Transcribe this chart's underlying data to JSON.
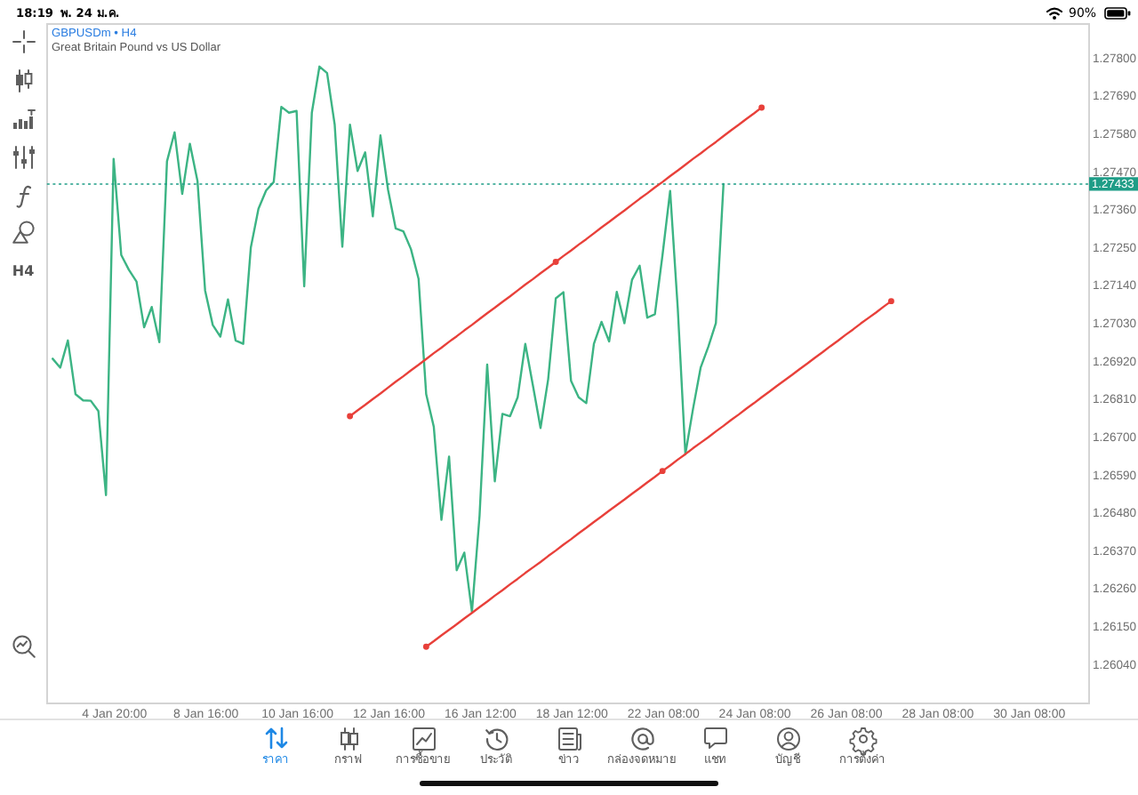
{
  "chart_data": {
    "type": "line",
    "title": "GBPUSDm • H4",
    "subtitle": "Great Britain Pound vs US Dollar",
    "categories": [
      null,
      null,
      null,
      null,
      null,
      null,
      null,
      null,
      "4 Jan 20:00",
      null,
      null,
      null,
      null,
      null,
      null,
      null,
      null,
      null,
      null,
      null,
      "8 Jan 16:00",
      null,
      null,
      null,
      null,
      null,
      null,
      null,
      null,
      null,
      null,
      null,
      "10 Jan 16:00",
      null,
      null,
      null,
      null,
      null,
      null,
      null,
      null,
      null,
      null,
      null,
      "12 Jan 16:00",
      null,
      null,
      null,
      null,
      null,
      null,
      null,
      null,
      null,
      null,
      null,
      "16 Jan 12:00",
      null,
      null,
      null,
      null,
      null,
      null,
      null,
      null,
      null,
      null,
      null,
      "18 Jan 12:00",
      null,
      null,
      null,
      null,
      null,
      null,
      null,
      null,
      null,
      null,
      null,
      "22 Jan 08:00",
      null,
      null,
      null,
      null,
      null,
      null,
      null,
      null,
      null,
      null,
      null,
      "24 Jan 08:00",
      null,
      null,
      null,
      null,
      null,
      null,
      null,
      null,
      null,
      null,
      null,
      "26 Jan 08:00",
      null,
      null,
      null,
      null,
      null,
      null,
      null,
      null,
      null,
      null,
      null,
      "28 Jan 08:00",
      null,
      null,
      null,
      null,
      null,
      null,
      null,
      null,
      null,
      null,
      null,
      "30 Jan 08:00",
      null,
      null,
      null,
      null,
      null,
      null,
      null
    ],
    "series": [
      {
        "color": "#3cb484",
        "values": [
          1.26926,
          1.269,
          1.26979,
          1.26823,
          1.26805,
          1.26804,
          1.26774,
          1.2653,
          1.27506,
          1.27227,
          1.27184,
          1.2715,
          1.27017,
          1.27076,
          1.26974,
          1.27499,
          1.27583,
          1.27404,
          1.2755,
          1.27442,
          1.27124,
          1.27024,
          1.2699,
          1.27098,
          1.26979,
          1.26969,
          1.27249,
          1.27361,
          1.27414,
          1.27439,
          1.27657,
          1.2764,
          1.27645,
          1.27136,
          1.2764,
          1.27774,
          1.27755,
          1.27605,
          1.27251,
          1.27605,
          1.27471,
          1.27525,
          1.27339,
          1.27574,
          1.27416,
          1.27304,
          1.27296,
          1.27244,
          1.27158,
          1.26823,
          1.26728,
          1.26458,
          1.26642,
          1.26312,
          1.26363,
          1.26191,
          1.2647,
          1.26909,
          1.2657,
          1.26766,
          1.26759,
          1.26814,
          1.26969,
          1.26848,
          1.26725,
          1.26866,
          1.27101,
          1.27119,
          1.26862,
          1.26814,
          1.26797,
          1.26969,
          1.27033,
          1.26976,
          1.2712,
          1.27029,
          1.27155,
          1.27196,
          1.27045,
          1.27055,
          1.27227,
          1.27413,
          1.27072,
          1.26649,
          1.2678,
          1.269,
          1.2696,
          1.27029,
          1.27433,
          null,
          null,
          null,
          null,
          null,
          null,
          null,
          null,
          null,
          null,
          null,
          null,
          null,
          null,
          null,
          null,
          null,
          null,
          null,
          null,
          null,
          null,
          null,
          null,
          null,
          null,
          null,
          null,
          null,
          null,
          null,
          null,
          null,
          null,
          null,
          null,
          null,
          null,
          null,
          null,
          null,
          null,
          null,
          null,
          null,
          null,
          null
        ]
      },
      {
        "type": "line",
        "color": "#e8403a",
        "values": [
          null,
          null,
          null,
          null,
          null,
          null,
          null,
          null,
          null,
          null,
          null,
          null,
          null,
          null,
          null,
          null,
          null,
          null,
          null,
          null,
          null,
          null,
          null,
          null,
          null,
          null,
          null,
          null,
          null,
          null,
          null,
          null,
          null,
          null,
          null,
          null,
          null,
          null,
          null,
          1.26759,
          1.26776,
          1.26792,
          1.26809,
          1.26825,
          1.26842,
          1.26859,
          1.26875,
          1.26892,
          1.26908,
          1.26925,
          1.26942,
          1.26958,
          1.26975,
          1.26991,
          1.27008,
          1.27024,
          1.27041,
          1.27058,
          1.27074,
          1.27091,
          1.27107,
          1.27124,
          1.27141,
          1.27157,
          1.27174,
          1.2719,
          1.27207,
          1.27224,
          1.2724,
          1.27257,
          1.27273,
          1.2729,
          1.27307,
          1.27323,
          1.2734,
          1.27356,
          1.27373,
          1.2739,
          1.27406,
          1.27423,
          1.27439,
          1.27456,
          1.27472,
          1.27489,
          1.27506,
          1.27522,
          1.27539,
          1.27555,
          1.27572,
          1.27589,
          1.27605,
          1.27622,
          1.27638,
          1.27655,
          null,
          null,
          null,
          null,
          null,
          null,
          null,
          null,
          null,
          null,
          null,
          null,
          null,
          null,
          null,
          null,
          null,
          null,
          null,
          null,
          null,
          null,
          null,
          null,
          null,
          null,
          null,
          null,
          null,
          null,
          null,
          null,
          null,
          null,
          null,
          null,
          null,
          null,
          null,
          null,
          null,
          null
        ]
      },
      {
        "type": "line",
        "color": "#e8403a",
        "values": [
          null,
          null,
          null,
          null,
          null,
          null,
          null,
          null,
          null,
          null,
          null,
          null,
          null,
          null,
          null,
          null,
          null,
          null,
          null,
          null,
          null,
          null,
          null,
          null,
          null,
          null,
          null,
          null,
          null,
          null,
          null,
          null,
          null,
          null,
          null,
          null,
          null,
          null,
          null,
          null,
          null,
          null,
          null,
          null,
          null,
          null,
          null,
          null,
          null,
          1.2609,
          1.26106,
          1.26123,
          1.26139,
          1.26155,
          1.26172,
          1.26188,
          1.26205,
          1.26221,
          1.26238,
          1.26254,
          1.26271,
          1.26287,
          1.26304,
          1.2632,
          1.26336,
          1.26353,
          1.26369,
          1.26386,
          1.26402,
          1.26419,
          1.26435,
          1.26452,
          1.26468,
          1.26485,
          1.26501,
          1.26517,
          1.26534,
          1.2655,
          1.26567,
          1.26583,
          1.266,
          1.26616,
          1.26633,
          1.26649,
          1.26666,
          1.26682,
          1.26698,
          1.26715,
          1.26731,
          1.26748,
          1.26764,
          1.26781,
          1.26797,
          1.26814,
          1.2683,
          1.26847,
          1.26863,
          1.26879,
          1.26896,
          1.26912,
          1.26929,
          1.26945,
          1.26962,
          1.26978,
          1.26995,
          1.27011,
          1.27028,
          1.27044,
          1.2706,
          1.27077,
          1.27093,
          null,
          null,
          null,
          null,
          null,
          null,
          null,
          null,
          null,
          null,
          null,
          null,
          null,
          null,
          null,
          null,
          null,
          null,
          null,
          null,
          null,
          null,
          null,
          null,
          null
        ]
      },
      {
        "type": "scatter",
        "color": "#e8403a",
        "marker": "circle",
        "values": [
          null,
          null,
          null,
          null,
          null,
          null,
          null,
          null,
          null,
          null,
          null,
          null,
          null,
          null,
          null,
          null,
          null,
          null,
          null,
          null,
          null,
          null,
          null,
          null,
          null,
          null,
          null,
          null,
          null,
          null,
          null,
          null,
          null,
          null,
          null,
          null,
          null,
          null,
          null,
          1.26759,
          null,
          null,
          null,
          null,
          null,
          null,
          null,
          null,
          null,
          1.2609,
          null,
          null,
          null,
          null,
          null,
          null,
          null,
          null,
          null,
          null,
          null,
          null,
          null,
          null,
          null,
          null,
          1.27207,
          null,
          null,
          null,
          null,
          null,
          null,
          null,
          null,
          null,
          null,
          null,
          null,
          null,
          1.266,
          null,
          null,
          null,
          null,
          null,
          null,
          null,
          null,
          null,
          null,
          null,
          null,
          1.27655,
          null,
          null,
          null,
          null,
          null,
          null,
          null,
          null,
          null,
          null,
          null,
          null,
          null,
          null,
          null,
          null,
          1.27093,
          null,
          null,
          null,
          null,
          null,
          null,
          null,
          null,
          null,
          null,
          null,
          null,
          null,
          null,
          null,
          null,
          null,
          null,
          null,
          null,
          null,
          null,
          null,
          null,
          null
        ]
      }
    ],
    "ylim": [
      1.25928,
      1.279
    ],
    "yticks": [
      {
        "value": 1.2604,
        "label": "1.26040"
      },
      {
        "value": 1.2615,
        "label": "1.26150"
      },
      {
        "value": 1.2626,
        "label": "1.26260"
      },
      {
        "value": 1.2637,
        "label": "1.26370"
      },
      {
        "value": 1.2648,
        "label": "1.26480"
      },
      {
        "value": 1.2659,
        "label": "1.26590"
      },
      {
        "value": 1.267,
        "label": "1.26700"
      },
      {
        "value": 1.2681,
        "label": "1.26810"
      },
      {
        "value": 1.2692,
        "label": "1.26920"
      },
      {
        "value": 1.2703,
        "label": "1.27030"
      },
      {
        "value": 1.2714,
        "label": "1.27140"
      },
      {
        "value": 1.2725,
        "label": "1.27250"
      },
      {
        "value": 1.2736,
        "label": "1.27360"
      },
      {
        "value": 1.2747,
        "label": "1.27470"
      },
      {
        "value": 1.2758,
        "label": "1.27580"
      },
      {
        "value": 1.2769,
        "label": "1.27690"
      },
      {
        "value": 1.278,
        "label": "1.27800"
      }
    ],
    "ref_lines": [
      {
        "axis": "y",
        "value": 1.27433,
        "label": "1.27433",
        "color": "#1f9d87",
        "line_style": "dotted"
      }
    ],
    "grid": false,
    "annotations": [
      "18:19",
      "พ. 24 ม.ค.",
      "90%",
      "H4",
      "ราคา",
      "กราฟ",
      "การซื้อขาย",
      "ประวัติ",
      "ข่าว",
      "กล่องจดหมาย",
      "แชท",
      "บัญชี",
      "การตั้งค่า"
    ]
  }
}
